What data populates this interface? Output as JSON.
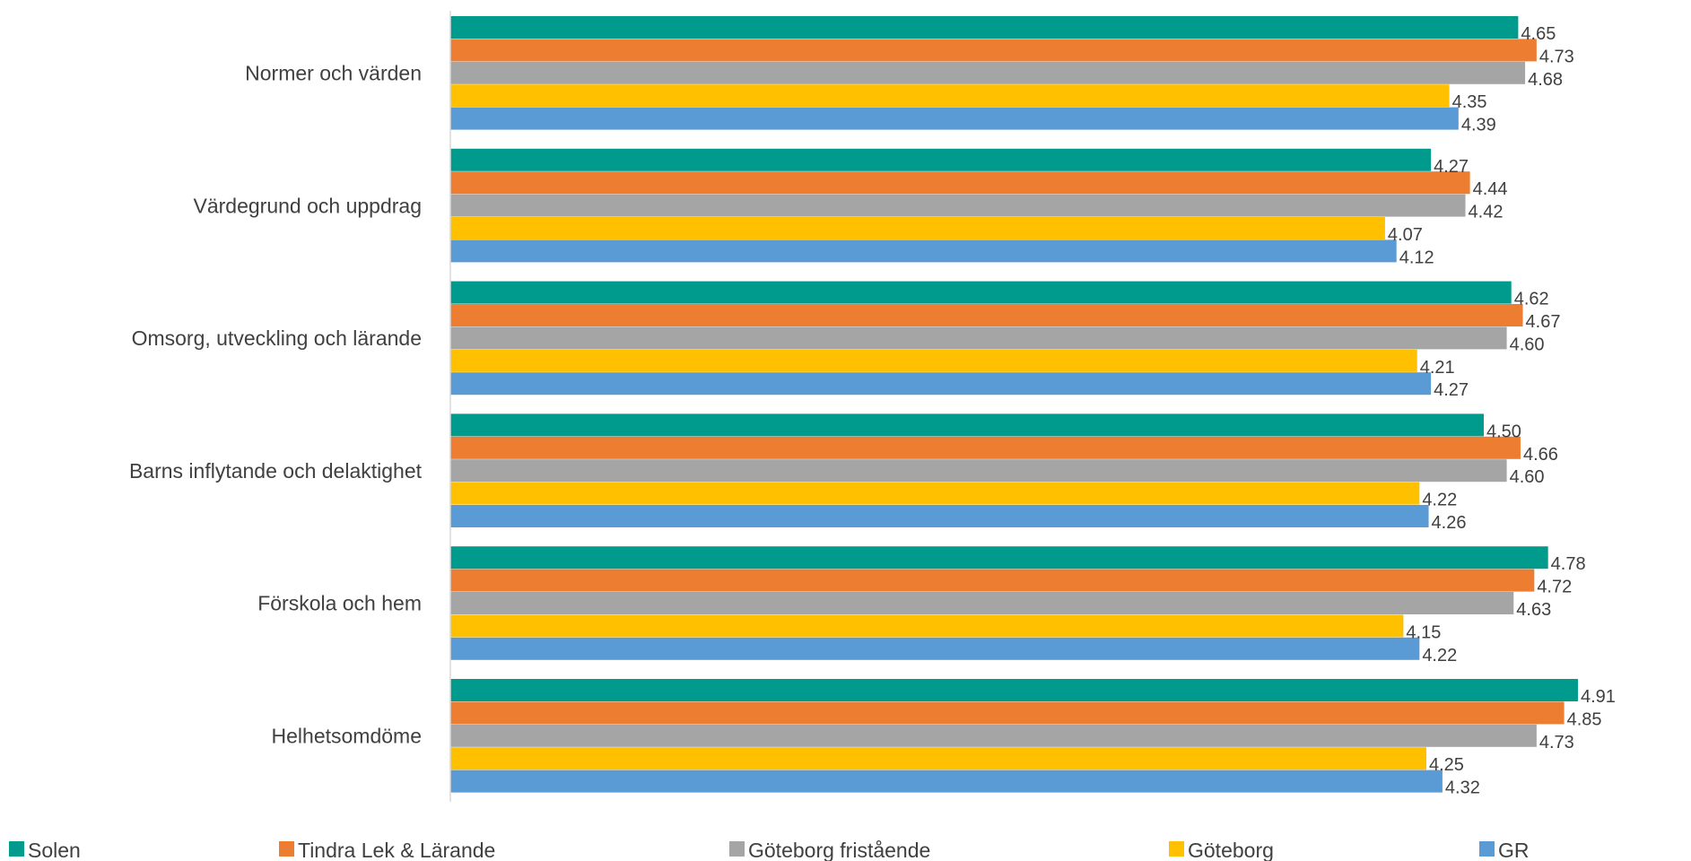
{
  "chart_data": {
    "type": "bar",
    "orientation": "horizontal",
    "categories": [
      "Normer och värden",
      "Värdegrund och uppdrag",
      "Omsorg, utveckling och lärande",
      "Barns inflytande och delaktighet",
      "Förskola och hem",
      "Helhetsomdöme"
    ],
    "series": [
      {
        "name": "Solen",
        "color": "#009B8D",
        "values": [
          4.65,
          4.27,
          4.62,
          4.5,
          4.78,
          4.91
        ],
        "labels": [
          "4.65",
          "4.27",
          "4.62",
          "4.50",
          "4.78",
          "4.91"
        ]
      },
      {
        "name": "Tindra Lek & Lärande",
        "color": "#ED7D31",
        "values": [
          4.73,
          4.44,
          4.67,
          4.66,
          4.72,
          4.85
        ],
        "labels": [
          "4.73",
          "4.44",
          "4.67",
          "4.66",
          "4.72",
          "4.85"
        ]
      },
      {
        "name": "Göteborg fristående",
        "color": "#A5A5A5",
        "values": [
          4.68,
          4.42,
          4.6,
          4.6,
          4.63,
          4.73
        ],
        "labels": [
          "4.68",
          "4.42",
          "4.60",
          "4.60",
          "4.63",
          "4.73"
        ]
      },
      {
        "name": "Göteborg",
        "color": "#FFC000",
        "values": [
          4.35,
          4.07,
          4.21,
          4.22,
          4.15,
          4.25
        ],
        "labels": [
          "4.35",
          "4.07",
          "4.21",
          "4.22",
          "4.15",
          "4.25"
        ]
      },
      {
        "name": "GR",
        "color": "#5B9BD5",
        "values": [
          4.39,
          4.12,
          4.27,
          4.26,
          4.22,
          4.32
        ],
        "labels": [
          "4.39",
          "4.12",
          "4.27",
          "4.26",
          "4.22",
          "4.32"
        ]
      }
    ],
    "xlim": [
      0,
      5.15
    ],
    "grid": false,
    "legend_position": "bottom",
    "data_labels": true
  }
}
